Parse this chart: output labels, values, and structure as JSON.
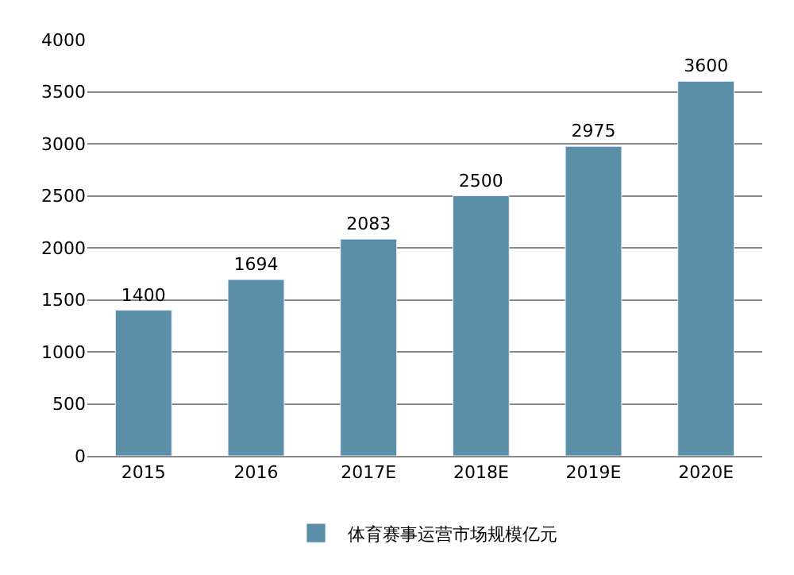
{
  "chart_data": {
    "type": "bar",
    "categories": [
      "2015",
      "2016",
      "2017E",
      "2018E",
      "2019E",
      "2020E"
    ],
    "series": [
      {
        "name": "体育赛事运营市场规模亿元",
        "color": "#5b8fa8",
        "values": [
          1400,
          1694,
          2083,
          2500,
          2975,
          3600
        ]
      }
    ],
    "ylim": [
      0,
      4000
    ],
    "yticks": [
      0,
      500,
      1000,
      1500,
      2000,
      2500,
      3000,
      3500,
      4000
    ],
    "grid": "y",
    "data_labels": true,
    "legend": "bottom"
  }
}
